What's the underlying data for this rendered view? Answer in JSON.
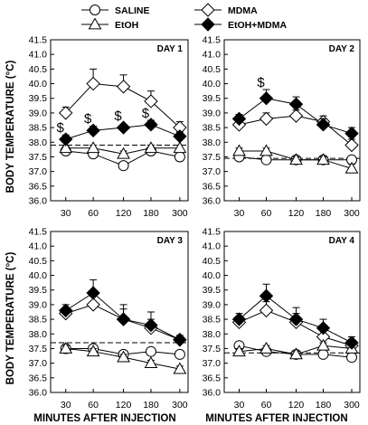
{
  "legend": {
    "entries": [
      {
        "key": "saline",
        "label": "SALINE",
        "marker": "circle",
        "fill": "#ffffff"
      },
      {
        "key": "mdma",
        "label": "MDMA",
        "marker": "diamond",
        "fill": "#ffffff"
      },
      {
        "key": "etoh",
        "label": "EtOH",
        "marker": "triangle",
        "fill": "#ffffff"
      },
      {
        "key": "etohmdma",
        "label": "EtOH+MDMA",
        "marker": "diamond",
        "fill": "#000000"
      }
    ]
  },
  "shared": {
    "ylabel": "BODY TEMPERATURE (°C)",
    "xlabel": "MINUTES AFTER INJECTION",
    "categories": [
      "30",
      "60",
      "120",
      "180",
      "300"
    ],
    "yticks": [
      "36.0",
      "36.5",
      "37.0",
      "37.5",
      "38.0",
      "38.5",
      "39.0",
      "39.5",
      "40.0",
      "40.5",
      "41.0",
      "41.5"
    ],
    "ylim": [
      36.0,
      41.5
    ]
  },
  "chart_data": [
    {
      "type": "line",
      "title": "DAY 1",
      "categories": [
        "30",
        "60",
        "120",
        "180",
        "300"
      ],
      "ylim": [
        36.0,
        41.5
      ],
      "baseline": 37.9,
      "series": [
        {
          "name": "SALINE",
          "values": [
            37.7,
            37.6,
            37.2,
            37.7,
            37.5
          ],
          "err": [
            0.15,
            0.15,
            0.1,
            0.1,
            0.1
          ]
        },
        {
          "name": "MDMA",
          "values": [
            39.0,
            40.0,
            39.9,
            39.4,
            38.5
          ],
          "err": [
            0.2,
            0.5,
            0.4,
            0.35,
            0.2
          ]
        },
        {
          "name": "EtOH",
          "values": [
            37.8,
            37.8,
            37.6,
            37.8,
            37.8
          ],
          "err": [
            0.1,
            0.1,
            0.1,
            0.1,
            0.1
          ]
        },
        {
          "name": "EtOH+MDMA",
          "values": [
            38.1,
            38.4,
            38.5,
            38.6,
            38.2
          ],
          "err": [
            0.15,
            0.15,
            0.1,
            0.15,
            0.15
          ]
        }
      ],
      "annotations": [
        {
          "text": "$",
          "category": 0,
          "y": 38.35
        },
        {
          "text": "$",
          "category": 1,
          "y": 38.65
        },
        {
          "text": "$",
          "category": 2,
          "y": 38.75
        },
        {
          "text": "$",
          "category": 3,
          "y": 38.85
        }
      ]
    },
    {
      "type": "line",
      "title": "DAY 2",
      "categories": [
        "30",
        "60",
        "120",
        "180",
        "300"
      ],
      "ylim": [
        36.0,
        41.5
      ],
      "baseline": 37.45,
      "series": [
        {
          "name": "SALINE",
          "values": [
            37.5,
            37.4,
            37.4,
            37.4,
            37.4
          ],
          "err": [
            0.1,
            0.1,
            0.1,
            0.1,
            0.1
          ]
        },
        {
          "name": "MDMA",
          "values": [
            38.6,
            38.8,
            38.9,
            38.7,
            37.9
          ],
          "err": [
            0.2,
            0.2,
            0.2,
            0.2,
            0.2
          ]
        },
        {
          "name": "EtOH",
          "values": [
            37.7,
            37.7,
            37.4,
            37.4,
            37.1
          ],
          "err": [
            0.1,
            0.1,
            0.1,
            0.1,
            0.15
          ]
        },
        {
          "name": "EtOH+MDMA",
          "values": [
            38.8,
            39.5,
            39.3,
            38.6,
            38.3
          ],
          "err": [
            0.15,
            0.3,
            0.25,
            0.2,
            0.2
          ]
        }
      ],
      "annotations": [
        {
          "text": "$",
          "category": 1,
          "y": 39.9
        }
      ]
    },
    {
      "type": "line",
      "title": "DAY 3",
      "categories": [
        "30",
        "60",
        "120",
        "180",
        "300"
      ],
      "ylim": [
        36.0,
        41.5
      ],
      "baseline": 37.7,
      "series": [
        {
          "name": "SALINE",
          "values": [
            37.5,
            37.5,
            37.3,
            37.4,
            37.3
          ],
          "err": [
            0.1,
            0.1,
            0.1,
            0.1,
            0.1
          ]
        },
        {
          "name": "MDMA",
          "values": [
            38.7,
            39.0,
            38.5,
            38.2,
            37.8
          ],
          "err": [
            0.2,
            0.3,
            0.35,
            0.3,
            0.1
          ]
        },
        {
          "name": "EtOH",
          "values": [
            37.5,
            37.4,
            37.2,
            37.0,
            36.8
          ],
          "err": [
            0.1,
            0.1,
            0.1,
            0.1,
            0.1
          ]
        },
        {
          "name": "EtOH+MDMA",
          "values": [
            38.8,
            39.4,
            38.5,
            38.3,
            37.8
          ],
          "err": [
            0.2,
            0.45,
            0.5,
            0.45,
            0.15
          ]
        }
      ],
      "annotations": []
    },
    {
      "type": "line",
      "title": "DAY 4",
      "categories": [
        "30",
        "60",
        "120",
        "180",
        "300"
      ],
      "ylim": [
        36.0,
        41.5
      ],
      "baseline": 37.35,
      "series": [
        {
          "name": "SALINE",
          "values": [
            37.6,
            37.4,
            37.3,
            37.3,
            37.2
          ],
          "err": [
            0.1,
            0.1,
            0.1,
            0.1,
            0.1
          ]
        },
        {
          "name": "MDMA",
          "values": [
            38.4,
            38.8,
            38.4,
            37.9,
            37.6
          ],
          "err": [
            0.2,
            0.3,
            0.3,
            0.3,
            0.2
          ]
        },
        {
          "name": "EtOH",
          "values": [
            37.4,
            37.5,
            37.3,
            37.6,
            37.5
          ],
          "err": [
            0.1,
            0.1,
            0.1,
            0.1,
            0.1
          ]
        },
        {
          "name": "EtOH+MDMA",
          "values": [
            38.5,
            39.3,
            38.5,
            38.2,
            37.7
          ],
          "err": [
            0.2,
            0.4,
            0.4,
            0.3,
            0.2
          ]
        }
      ],
      "annotations": []
    }
  ]
}
